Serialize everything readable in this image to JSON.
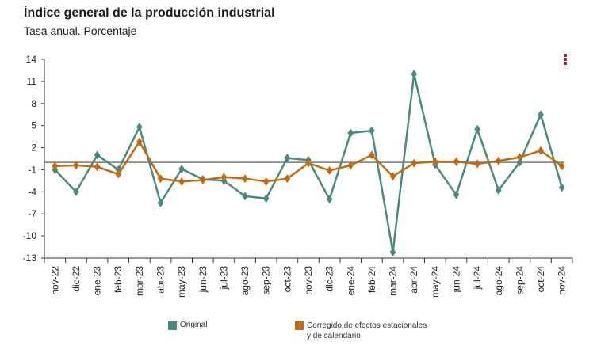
{
  "header": {
    "title": "Índice general de la producción industrial",
    "subtitle": "Tasa anual. Porcentaje"
  },
  "chart_data": {
    "type": "line",
    "title": "Índice general de la producción industrial",
    "subtitle": "Tasa anual. Porcentaje",
    "xlabel": "",
    "ylabel": "",
    "ylim": [
      -13,
      14
    ],
    "yticks": [
      14,
      11,
      8,
      5,
      2,
      -1,
      -4,
      -7,
      -10,
      -13
    ],
    "grid": false,
    "reference_line": 0,
    "legend_position": "bottom",
    "categories": [
      "nov-22",
      "dic-22",
      "ene-23",
      "feb-23",
      "mar-23",
      "abr-23",
      "may-23",
      "jun-23",
      "jul-23",
      "ago-23",
      "sep-23",
      "oct-23",
      "nov-23",
      "dic-23",
      "ene-24",
      "feb-24",
      "mar-24",
      "abr-24",
      "may-24",
      "jun-24",
      "jul-24",
      "ago-24",
      "sep-24",
      "oct-24",
      "nov-24"
    ],
    "series": [
      {
        "name": "Original",
        "color": "#4a8a7e",
        "values": [
          -1.0,
          -4.0,
          1.0,
          -1.0,
          4.8,
          -5.5,
          -0.9,
          -2.3,
          -2.5,
          -4.6,
          -4.9,
          0.6,
          0.3,
          -5.0,
          4.0,
          4.3,
          -12.2,
          12.0,
          -0.3,
          -4.4,
          4.5,
          -3.8,
          -0.0,
          6.5,
          -3.4
        ]
      },
      {
        "name": "Corregido de efectos\nestacionales y de calendario",
        "color": "#c26a12",
        "values": [
          -0.5,
          -0.4,
          -0.6,
          -1.6,
          2.8,
          -2.2,
          -2.6,
          -2.4,
          -2.0,
          -2.2,
          -2.6,
          -2.2,
          -0.1,
          -1.1,
          -0.4,
          1.0,
          -1.9,
          -0.1,
          0.1,
          0.1,
          -0.2,
          0.2,
          0.7,
          1.6,
          -0.5
        ]
      }
    ]
  },
  "legend": {
    "items": [
      {
        "label": "Original",
        "color": "#4a8a7e"
      },
      {
        "label": "Corregido de efectos estacionales y de calendario",
        "color": "#c26a12"
      }
    ]
  },
  "menu": {
    "icon": "kebab-menu-icon"
  }
}
